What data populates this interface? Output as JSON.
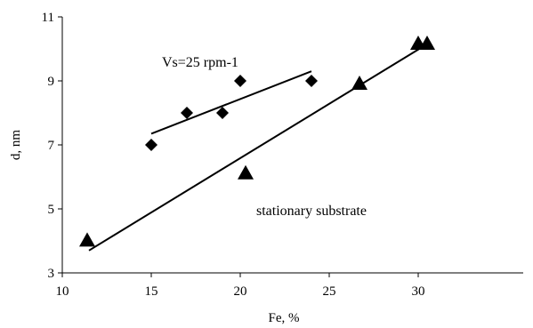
{
  "chart_data": {
    "type": "scatter",
    "title": "",
    "xlabel": "Fe, %",
    "ylabel": "d, nm",
    "xlim": [
      10,
      32
    ],
    "ylim": [
      3,
      11
    ],
    "x_ticks": [
      10,
      15,
      20,
      25,
      30
    ],
    "y_ticks": [
      3,
      5,
      7,
      9,
      11
    ],
    "grid": false,
    "series": [
      {
        "marker": "diamond",
        "points": [
          {
            "x": 15,
            "y": 7.0
          },
          {
            "x": 17,
            "y": 8.0
          },
          {
            "x": 19,
            "y": 8.0
          },
          {
            "x": 20,
            "y": 9.0
          },
          {
            "x": 24,
            "y": 9.0
          }
        ],
        "trendline": {
          "x1": 15,
          "y1": 7.35,
          "x2": 24,
          "y2": 9.3
        }
      },
      {
        "marker": "triangle",
        "points": [
          {
            "x": 11.4,
            "y": 4.0
          },
          {
            "x": 20.3,
            "y": 6.1
          },
          {
            "x": 26.7,
            "y": 8.9
          },
          {
            "x": 30.0,
            "y": 10.15
          },
          {
            "x": 30.5,
            "y": 10.15
          }
        ],
        "trendline": {
          "x1": 11.5,
          "y1": 3.7,
          "x2": 30.5,
          "y2": 10.15
        }
      }
    ],
    "annotations": [
      {
        "text": "Vs=25 rpm-1",
        "x": 15.6,
        "y": 9.45
      },
      {
        "text": "stationary substrate",
        "x": 20.9,
        "y": 4.8
      }
    ]
  }
}
